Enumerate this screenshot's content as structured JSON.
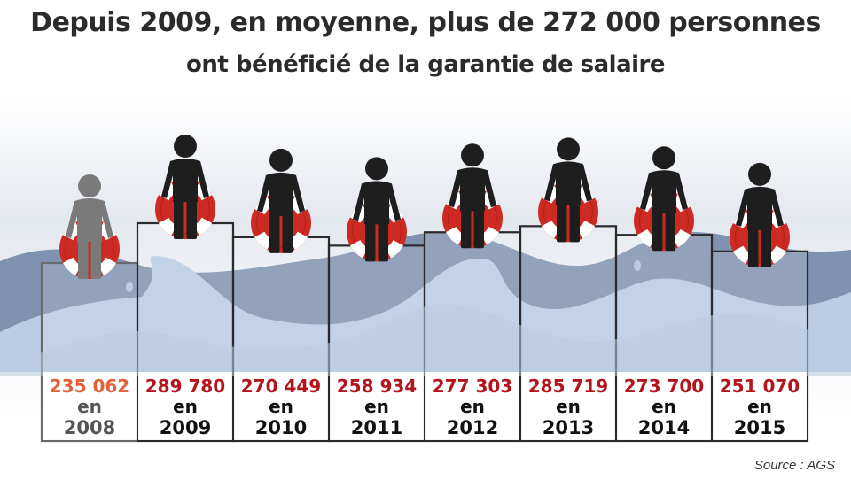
{
  "header": {
    "title_line1": "Depuis 2009, en moyenne, plus de 272 000 personnes",
    "title_line2": "ont bénéficié de la garantie de salaire"
  },
  "source": "Source : AGS",
  "colors": {
    "value_first": "#e2603a",
    "value_other": "#b4141c",
    "year_first": "#555555",
    "year_other": "#111111",
    "person_first": "#7a7a7a",
    "person_other": "#1e1e1e",
    "buoy_red": "#cc2a22",
    "buoy_white": "#ffffff",
    "wave_dark": "#7f92b0",
    "wave_light": "#b9cce3",
    "bar_fill": "#ffffff",
    "bar_stroke": "#2a2a2a",
    "bar_stroke_first": "#6a6a6a"
  },
  "icons": [
    "person-icon",
    "lifebuoy-icon",
    "wave-shape"
  ],
  "chart_data": {
    "type": "bar",
    "title": "Depuis 2009, en moyenne, plus de 272 000 personnes ont bénéficié de la garantie de salaire",
    "categories": [
      "2008",
      "2009",
      "2010",
      "2011",
      "2012",
      "2013",
      "2014",
      "2015"
    ],
    "values": [
      235062,
      289780,
      270449,
      258934,
      277303,
      285719,
      273700,
      251070
    ],
    "value_labels": [
      "235 062",
      "289 780",
      "270 449",
      "258 934",
      "277 303",
      "285 719",
      "273 700",
      "251 070"
    ],
    "connector": "en",
    "source": "Source : AGS",
    "grid": false,
    "legend": "none"
  }
}
